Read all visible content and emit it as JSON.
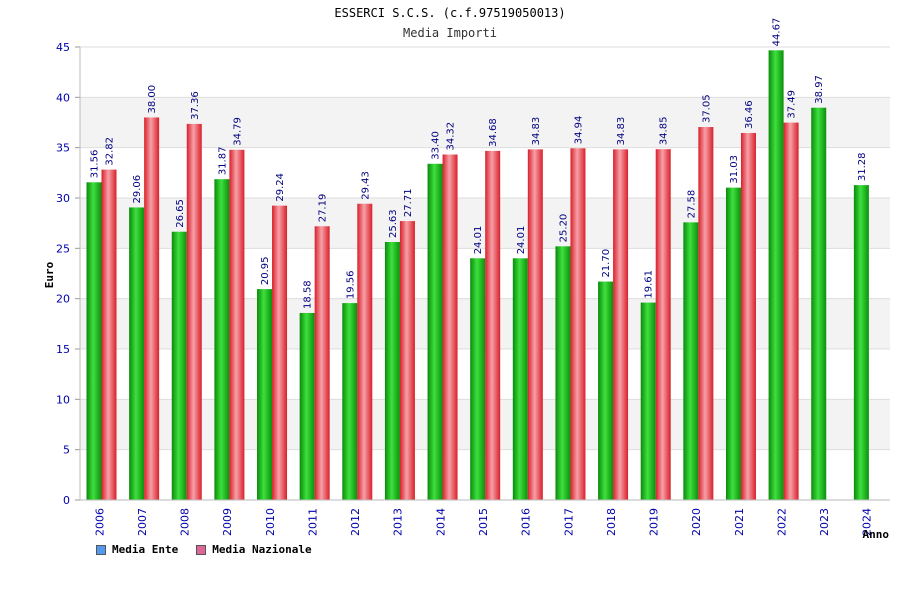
{
  "chart_data": {
    "type": "bar",
    "title": "ESSERCI S.C.S. (c.f.97519050013)",
    "subtitle": "Media Importi",
    "xlabel": "Anno",
    "ylabel": "Euro",
    "ylim": [
      0,
      45
    ],
    "yticks": [
      0,
      5,
      10,
      15,
      20,
      25,
      30,
      35,
      40,
      45
    ],
    "grid": true,
    "legend_position": "bottom-left",
    "categories": [
      "2006",
      "2007",
      "2008",
      "2009",
      "2010",
      "2011",
      "2012",
      "2013",
      "2014",
      "2015",
      "2016",
      "2017",
      "2018",
      "2019",
      "2020",
      "2021",
      "2022",
      "2023",
      "2024"
    ],
    "series": [
      {
        "name": "Media Ente",
        "color": "#1db81d",
        "legend_color": "#5599ee",
        "values": [
          31.56,
          29.06,
          26.65,
          31.87,
          20.95,
          18.58,
          19.56,
          25.63,
          33.4,
          24.01,
          24.01,
          25.2,
          21.7,
          19.61,
          27.58,
          31.03,
          44.67,
          38.97,
          31.28
        ],
        "labels": [
          "31.56",
          "29.06",
          "26.65",
          "31.87",
          "20.95",
          "18.58",
          "19.56",
          "25.63",
          "33.40",
          "24.01",
          "24.01",
          "25.20",
          "21.70",
          "19.61",
          "27.58",
          "31.03",
          "44.67",
          "38.97",
          "31.28"
        ]
      },
      {
        "name": "Media Nazionale",
        "color": "#e8303a",
        "legend_color": "#dd6699",
        "values": [
          32.82,
          38.0,
          37.36,
          34.79,
          29.24,
          27.19,
          29.43,
          27.71,
          34.32,
          34.68,
          34.83,
          34.94,
          34.83,
          34.85,
          37.05,
          36.46,
          37.49,
          null,
          null
        ],
        "labels": [
          "32.82",
          "38.00",
          "37.36",
          "34.79",
          "29.24",
          "27.19",
          "29.43",
          "27.71",
          "34.32",
          "34.68",
          "34.83",
          "34.94",
          "34.83",
          "34.85",
          "37.05",
          "36.46",
          "37.49",
          null,
          null
        ]
      }
    ]
  }
}
